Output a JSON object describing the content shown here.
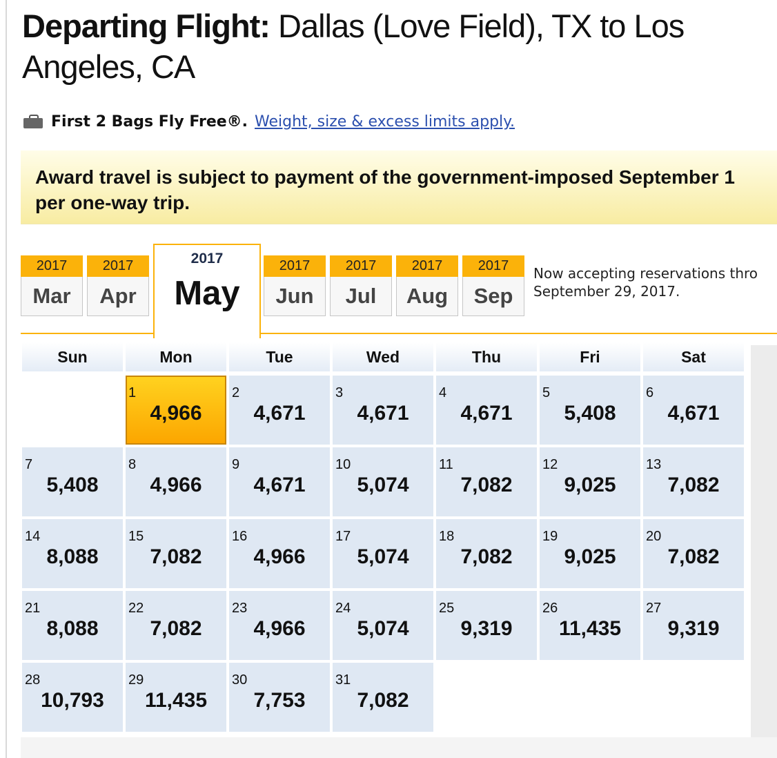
{
  "heading": {
    "label": "Departing Flight:",
    "route": " Dallas (Love Field), TX to Los Angeles, CA"
  },
  "bags": {
    "icon": "briefcase-icon",
    "text": "First 2 Bags Fly Free®.",
    "link": "Weight, size & excess limits apply."
  },
  "notice": {
    "line1": "Award travel is subject to payment of the government-imposed September 1",
    "line2": "per one-way trip."
  },
  "month_tabs": [
    {
      "year": "2017",
      "month": "Mar"
    },
    {
      "year": "2017",
      "month": "Apr"
    },
    {
      "year": "2017",
      "month": "May",
      "active": true
    },
    {
      "year": "2017",
      "month": "Jun"
    },
    {
      "year": "2017",
      "month": "Jul"
    },
    {
      "year": "2017",
      "month": "Aug"
    },
    {
      "year": "2017",
      "month": "Sep"
    }
  ],
  "reservations": {
    "line1": "Now accepting reservations thro",
    "line2": "September 29, 2017."
  },
  "calendar": {
    "weekdays": [
      "Sun",
      "Mon",
      "Tue",
      "Wed",
      "Thu",
      "Fri",
      "Sat"
    ],
    "leading_blanks": 1,
    "selected_day": "1",
    "days": [
      {
        "day": "1",
        "points": "4,966"
      },
      {
        "day": "2",
        "points": "4,671"
      },
      {
        "day": "3",
        "points": "4,671"
      },
      {
        "day": "4",
        "points": "4,671"
      },
      {
        "day": "5",
        "points": "5,408"
      },
      {
        "day": "6",
        "points": "4,671"
      },
      {
        "day": "7",
        "points": "5,408"
      },
      {
        "day": "8",
        "points": "4,966"
      },
      {
        "day": "9",
        "points": "4,671"
      },
      {
        "day": "10",
        "points": "5,074"
      },
      {
        "day": "11",
        "points": "7,082"
      },
      {
        "day": "12",
        "points": "9,025"
      },
      {
        "day": "13",
        "points": "7,082"
      },
      {
        "day": "14",
        "points": "8,088"
      },
      {
        "day": "15",
        "points": "7,082"
      },
      {
        "day": "16",
        "points": "4,966"
      },
      {
        "day": "17",
        "points": "5,074"
      },
      {
        "day": "18",
        "points": "7,082"
      },
      {
        "day": "19",
        "points": "9,025"
      },
      {
        "day": "20",
        "points": "7,082"
      },
      {
        "day": "21",
        "points": "8,088"
      },
      {
        "day": "22",
        "points": "7,082"
      },
      {
        "day": "23",
        "points": "4,966"
      },
      {
        "day": "24",
        "points": "5,074"
      },
      {
        "day": "25",
        "points": "9,319"
      },
      {
        "day": "26",
        "points": "11,435"
      },
      {
        "day": "27",
        "points": "9,319"
      },
      {
        "day": "28",
        "points": "10,793"
      },
      {
        "day": "29",
        "points": "11,435"
      },
      {
        "day": "30",
        "points": "7,753"
      },
      {
        "day": "31",
        "points": "7,082"
      }
    ]
  }
}
